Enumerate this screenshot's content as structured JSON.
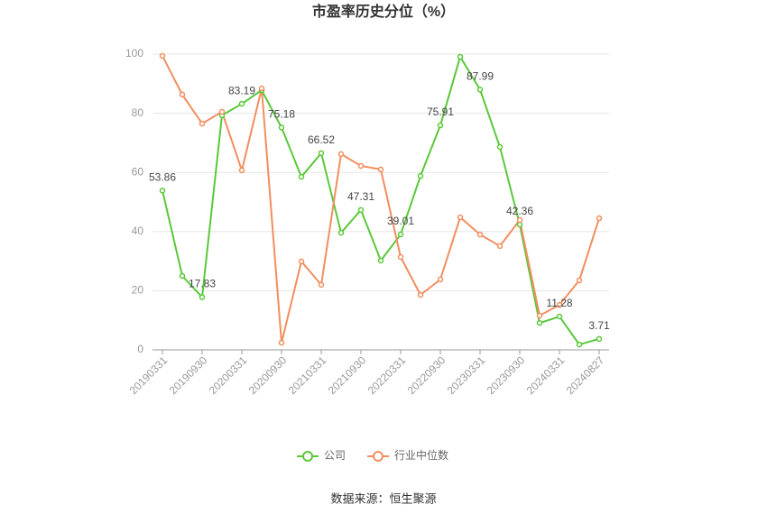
{
  "chart_data": {
    "type": "line",
    "title": "市盈率历史分位（%）",
    "categories": [
      "20190331",
      null,
      "20190930",
      null,
      "20200331",
      null,
      "20200930",
      null,
      "20210331",
      null,
      "20210930",
      null,
      "20220331",
      null,
      "20220930",
      null,
      "20230331",
      null,
      "20230930",
      null,
      "20240331",
      null,
      "20240827"
    ],
    "series": [
      {
        "name": "公司",
        "color": "#5ac83a",
        "values": [
          53.86,
          25,
          17.83,
          79.3,
          83.19,
          87.8,
          75.18,
          58.5,
          66.52,
          39.6,
          47.31,
          30.2,
          39.01,
          58.8,
          75.91,
          99.1,
          87.99,
          68.6,
          42.36,
          9.1,
          11.28,
          1.8,
          3.71
        ],
        "value_labels": [
          "53.86",
          null,
          "17.83",
          null,
          "83.19",
          null,
          "75.18",
          null,
          "66.52",
          null,
          "47.31",
          null,
          "39.01",
          null,
          "75.91",
          null,
          "87.99",
          null,
          "42.36",
          null,
          "11.28",
          null,
          "3.71"
        ]
      },
      {
        "name": "行业中位数",
        "color": "#f28e5f",
        "values": [
          99.4,
          86.3,
          76.5,
          80.5,
          60.7,
          88.4,
          2.4,
          29.9,
          22,
          66.2,
          62.2,
          61,
          31.4,
          18.6,
          23.8,
          44.8,
          39,
          35.1,
          43.9,
          11.6,
          15.2,
          23.5,
          44.5
        ]
      }
    ],
    "ylim": [
      0,
      100
    ],
    "yticks": [
      0,
      20,
      40,
      60,
      80,
      100
    ],
    "grid": true,
    "source": "数据来源：恒生聚源"
  }
}
